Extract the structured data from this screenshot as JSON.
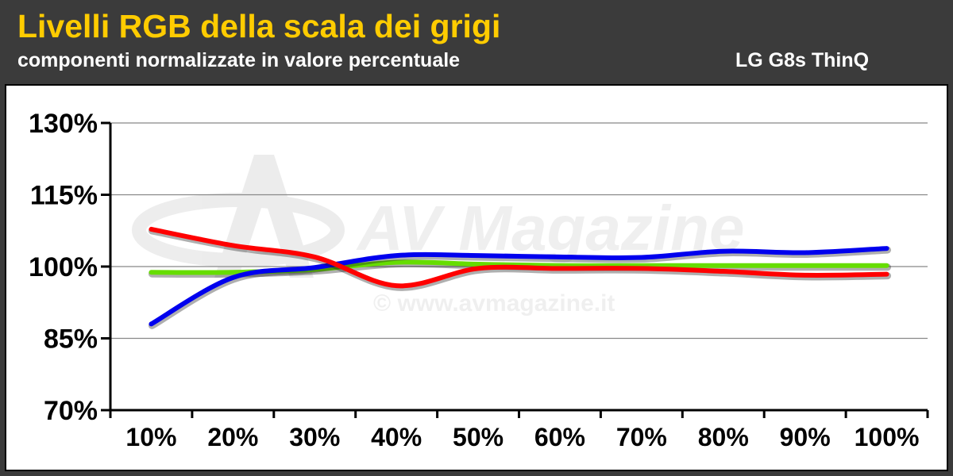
{
  "header": {
    "title": "Livelli RGB della scala dei grigi",
    "subtitle": "componenti normalizzate in valore percentuale",
    "device": "LG G8s ThinQ"
  },
  "watermark": {
    "brand": "AV Magazine",
    "url": "© www.avmagazine.it"
  },
  "colors": {
    "red": "#ff0000",
    "green": "#66dd00",
    "blue": "#0000ee",
    "title": "#ffcc00"
  },
  "chart_data": {
    "type": "line",
    "x": [
      "10%",
      "20%",
      "30%",
      "40%",
      "50%",
      "60%",
      "70%",
      "80%",
      "90%",
      "100%"
    ],
    "y_ticks": [
      "130%",
      "115%",
      "100%",
      "85%",
      "70%"
    ],
    "ylim": [
      70,
      130
    ],
    "grid": true,
    "series": [
      {
        "color_key": "green",
        "values": [
          98.8,
          98.8,
          99.4,
          100.9,
          100.5,
          100.2,
          100.2,
          100.2,
          100.2,
          100.2
        ]
      },
      {
        "color_key": "blue",
        "values": [
          88.0,
          97.7,
          99.8,
          102.3,
          102.3,
          102.0,
          101.9,
          103.2,
          102.9,
          103.8
        ]
      },
      {
        "color_key": "red",
        "values": [
          107.8,
          104.4,
          102.0,
          96.0,
          99.6,
          99.6,
          99.6,
          99.0,
          98.2,
          98.4
        ]
      }
    ]
  }
}
